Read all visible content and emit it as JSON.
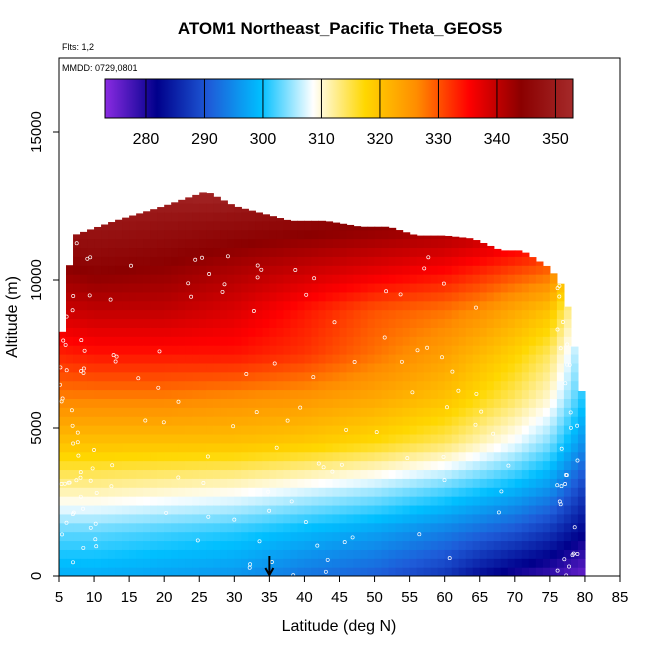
{
  "chart_data": {
    "type": "heatmap",
    "title": "ATOM1 Northeast_Pacific Theta_GEOS5",
    "flights_label": "Flts: 1,2",
    "mmdd_label": "MMDD: 0729,0801",
    "xlabel": "Latitude (deg N)",
    "ylabel": "Altitude (m)",
    "xlim": [
      5,
      85
    ],
    "ylim": [
      0,
      17500
    ],
    "x_ticks": [
      5,
      10,
      15,
      20,
      25,
      30,
      35,
      40,
      45,
      50,
      55,
      60,
      65,
      70,
      75,
      80,
      85
    ],
    "y_ticks": [
      0,
      5000,
      10000,
      15000
    ],
    "grid": false,
    "colorbar": {
      "placement": "top-inside",
      "range": [
        273,
        353
      ],
      "ticks": [
        280,
        290,
        300,
        310,
        320,
        330,
        340,
        350
      ],
      "colors": [
        "#8a2be2",
        "#00008b",
        "#1e5bd8",
        "#00bfff",
        "#ffffff",
        "#ffd700",
        "#ff8c00",
        "#ff0000",
        "#8b0000",
        "#a52a2a"
      ]
    },
    "field_values": {
      "description_units": "potential temperature (K)",
      "latitude": [
        5,
        10,
        20,
        30,
        40,
        50,
        60,
        65,
        70,
        75,
        80
      ],
      "altitude": [
        0,
        1500,
        3000,
        4500,
        6000,
        7500,
        9000,
        10500,
        12000,
        13000
      ],
      "theta": [
        [
          298,
          298,
          297,
          296,
          293,
          291,
          287,
          283,
          280,
          278,
          275
        ],
        [
          303,
          303,
          302,
          301,
          299,
          297,
          294,
          292,
          290,
          287,
          282
        ],
        [
          312,
          312,
          311,
          310,
          308,
          306,
          303,
          301,
          299,
          296,
          288
        ],
        [
          320,
          320,
          320,
          320,
          319,
          317,
          314,
          311,
          308,
          304,
          295
        ],
        [
          327,
          327,
          327,
          326,
          325,
          323,
          320,
          317,
          314,
          310,
          300
        ],
        [
          333,
          334,
          334,
          334,
          332,
          328,
          324,
          321,
          318,
          314,
          303
        ],
        [
          339,
          340,
          340,
          338,
          334,
          330,
          328,
          326,
          323,
          320,
          306
        ],
        [
          344,
          345,
          344,
          342,
          340,
          338,
          336,
          334,
          332,
          330,
          310
        ],
        [
          349,
          349,
          348,
          347,
          346,
          345,
          344,
          343,
          342,
          341,
          312
        ],
        [
          352,
          352,
          352,
          352,
          351,
          350,
          349,
          348,
          347,
          346,
          315
        ]
      ]
    },
    "max_altitude_profile": {
      "latitude": [
        5,
        6,
        7,
        13,
        20,
        26,
        30,
        38,
        43,
        48,
        52,
        56,
        60,
        64,
        68,
        71,
        73,
        75,
        77,
        78,
        79,
        80
      ],
      "altitude": [
        7000,
        9500,
        11500,
        12000,
        12500,
        13000,
        12500,
        12000,
        12000,
        11800,
        11800,
        11500,
        11500,
        11400,
        11000,
        11000,
        10700,
        10400,
        9700,
        8500,
        7000,
        5500
      ]
    },
    "marker": {
      "latitude": 35,
      "symbol": "arrow",
      "color": "#000000"
    }
  }
}
